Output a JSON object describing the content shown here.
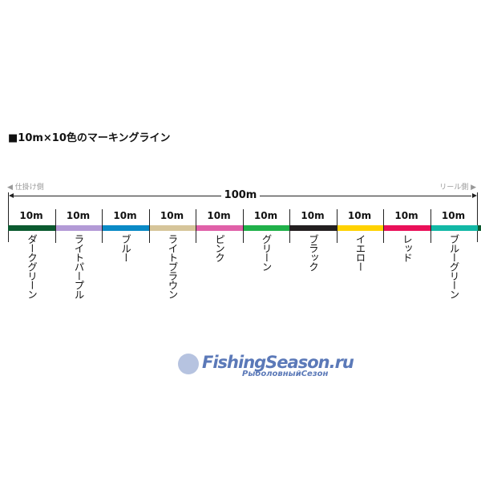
{
  "title": "■10m×10色のマーキングライン",
  "left_side": "◀ 仕掛け側",
  "right_side": "リール側 ▶",
  "total_length": "100m",
  "segments": [
    {
      "length": "10m",
      "name": "ダークグリーン",
      "color": "#0b5a2f"
    },
    {
      "length": "10m",
      "name": "ライトパープル",
      "color": "#b39ad6"
    },
    {
      "length": "10m",
      "name": "ブルー",
      "color": "#0a8ac6"
    },
    {
      "length": "10m",
      "name": "ライトブラウン",
      "color": "#d6c59a"
    },
    {
      "length": "10m",
      "name": "ピンク",
      "color": "#e060a8"
    },
    {
      "length": "10m",
      "name": "グリーン",
      "color": "#20b14a"
    },
    {
      "length": "10m",
      "name": "ブラック",
      "color": "#231f20"
    },
    {
      "length": "10m",
      "name": "イエロー",
      "color": "#ffd200"
    },
    {
      "length": "10m",
      "name": "レッド",
      "color": "#ea1059"
    },
    {
      "length": "10m",
      "name": "ブルーグリーン",
      "color": "#12b8a6"
    }
  ],
  "watermark": {
    "line1": "FishingSeason.ru",
    "line2": "РыболовныйСезон"
  }
}
